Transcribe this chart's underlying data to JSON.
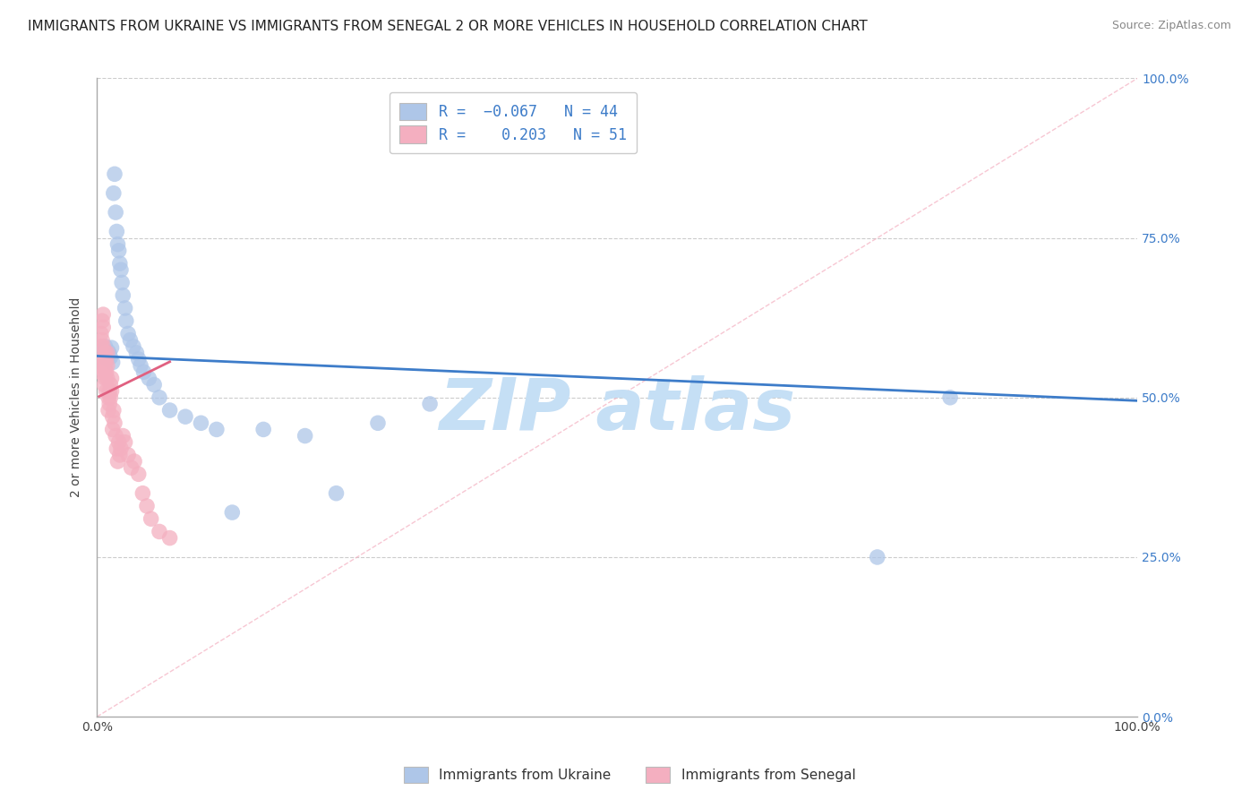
{
  "title": "IMMIGRANTS FROM UKRAINE VS IMMIGRANTS FROM SENEGAL 2 OR MORE VEHICLES IN HOUSEHOLD CORRELATION CHART",
  "source": "Source: ZipAtlas.com",
  "ylabel": "2 or more Vehicles in Household",
  "xlim": [
    0.0,
    1.0
  ],
  "ylim": [
    0.0,
    1.0
  ],
  "ukraine_R": -0.067,
  "ukraine_N": 44,
  "senegal_R": 0.203,
  "senegal_N": 51,
  "ukraine_color": "#aec6e8",
  "senegal_color": "#f4afc0",
  "ukraine_line_color": "#3d7cc9",
  "senegal_line_color": "#e06080",
  "diag_line_color": "#f4afc0",
  "watermark": "ZIP atlas",
  "watermark_color": "#c5dff5",
  "background_color": "#ffffff",
  "grid_color": "#cccccc",
  "title_fontsize": 11,
  "source_fontsize": 9,
  "legend_R_color": "#3d7cc9",
  "right_tick_color": "#3d7cc9",
  "uk_x": [
    0.005,
    0.007,
    0.008,
    0.009,
    0.01,
    0.011,
    0.012,
    0.013,
    0.014,
    0.015,
    0.016,
    0.017,
    0.018,
    0.019,
    0.02,
    0.021,
    0.022,
    0.023,
    0.024,
    0.025,
    0.027,
    0.028,
    0.03,
    0.032,
    0.035,
    0.038,
    0.04,
    0.042,
    0.045,
    0.05,
    0.055,
    0.06,
    0.07,
    0.085,
    0.1,
    0.115,
    0.13,
    0.16,
    0.2,
    0.23,
    0.27,
    0.32,
    0.75,
    0.82
  ],
  "uk_y": [
    0.57,
    0.575,
    0.58,
    0.565,
    0.56,
    0.572,
    0.568,
    0.563,
    0.578,
    0.555,
    0.82,
    0.85,
    0.79,
    0.76,
    0.74,
    0.73,
    0.71,
    0.7,
    0.68,
    0.66,
    0.64,
    0.62,
    0.6,
    0.59,
    0.58,
    0.57,
    0.56,
    0.55,
    0.54,
    0.53,
    0.52,
    0.5,
    0.48,
    0.47,
    0.46,
    0.45,
    0.32,
    0.45,
    0.44,
    0.35,
    0.46,
    0.49,
    0.25,
    0.5
  ],
  "sg_x": [
    0.002,
    0.003,
    0.004,
    0.004,
    0.005,
    0.005,
    0.005,
    0.006,
    0.006,
    0.006,
    0.007,
    0.007,
    0.007,
    0.008,
    0.008,
    0.008,
    0.009,
    0.009,
    0.009,
    0.01,
    0.01,
    0.01,
    0.011,
    0.011,
    0.012,
    0.012,
    0.013,
    0.013,
    0.014,
    0.014,
    0.015,
    0.015,
    0.016,
    0.017,
    0.018,
    0.019,
    0.02,
    0.021,
    0.022,
    0.023,
    0.025,
    0.027,
    0.03,
    0.033,
    0.036,
    0.04,
    0.044,
    0.048,
    0.052,
    0.06,
    0.07
  ],
  "sg_y": [
    0.55,
    0.54,
    0.6,
    0.58,
    0.62,
    0.59,
    0.56,
    0.63,
    0.61,
    0.58,
    0.56,
    0.54,
    0.52,
    0.57,
    0.55,
    0.53,
    0.56,
    0.54,
    0.51,
    0.57,
    0.55,
    0.53,
    0.5,
    0.48,
    0.51,
    0.49,
    0.52,
    0.5,
    0.53,
    0.51,
    0.47,
    0.45,
    0.48,
    0.46,
    0.44,
    0.42,
    0.4,
    0.43,
    0.41,
    0.42,
    0.44,
    0.43,
    0.41,
    0.39,
    0.4,
    0.38,
    0.35,
    0.33,
    0.31,
    0.29,
    0.28
  ]
}
